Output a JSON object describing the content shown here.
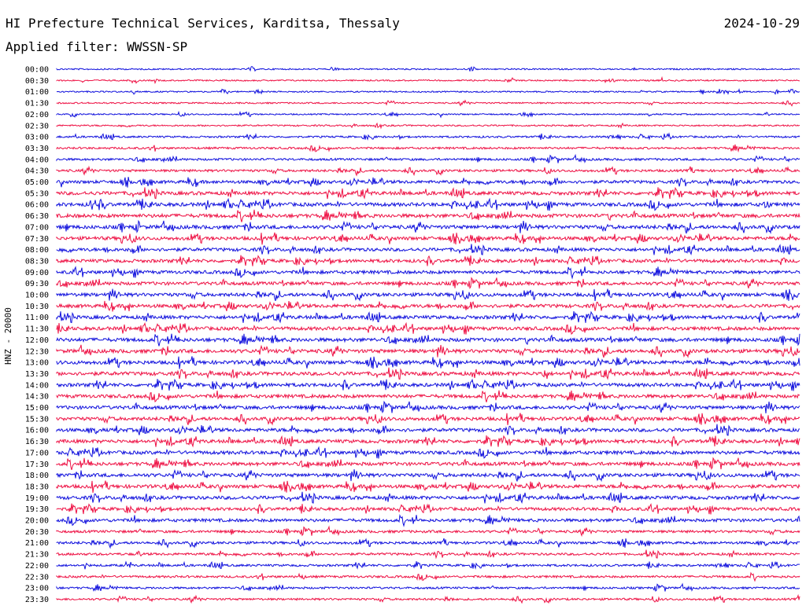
{
  "header": {
    "title": "HI Prefecture Technical Services, Karditsa, Thessaly",
    "date": "2024-10-29",
    "filter": "Applied filter: WWSSN-SP",
    "channel_label": "HNZ - 20000"
  },
  "colors": {
    "blue": "#1010dd",
    "red": "#ee1144"
  },
  "chart_data": {
    "type": "line",
    "title": "HI Prefecture Technical Services, Karditsa, Thessaly",
    "ylabel": "HNZ - 20000",
    "row_labels": [
      "00:00",
      "00:30",
      "01:00",
      "01:30",
      "02:00",
      "02:30",
      "03:00",
      "03:30",
      "04:00",
      "04:30",
      "05:00",
      "05:30",
      "06:00",
      "06:30",
      "07:00",
      "07:30",
      "08:00",
      "08:30",
      "09:00",
      "09:30",
      "10:00",
      "10:30",
      "11:00",
      "11:30",
      "12:00",
      "12:30",
      "13:00",
      "13:30",
      "14:00",
      "14:30",
      "15:00",
      "15:30",
      "16:00",
      "16:30",
      "17:00",
      "17:30",
      "18:00",
      "18:30",
      "19:00",
      "19:30",
      "20:00",
      "20:30",
      "21:00",
      "21:30",
      "22:00",
      "22:30",
      "23:00",
      "23:30"
    ],
    "row_colors": [
      "blue",
      "red"
    ],
    "activity": [
      0.12,
      0.12,
      0.12,
      0.14,
      0.12,
      0.16,
      0.25,
      0.3,
      0.35,
      0.4,
      0.6,
      0.7,
      0.75,
      0.75,
      0.75,
      0.7,
      0.65,
      0.65,
      0.65,
      0.65,
      0.7,
      0.7,
      0.7,
      0.7,
      0.75,
      0.75,
      0.75,
      0.75,
      0.7,
      0.7,
      0.7,
      0.7,
      0.7,
      0.7,
      0.7,
      0.7,
      0.7,
      0.7,
      0.7,
      0.6,
      0.6,
      0.45,
      0.45,
      0.4,
      0.35,
      0.35,
      0.3,
      0.3
    ],
    "grid": false
  }
}
